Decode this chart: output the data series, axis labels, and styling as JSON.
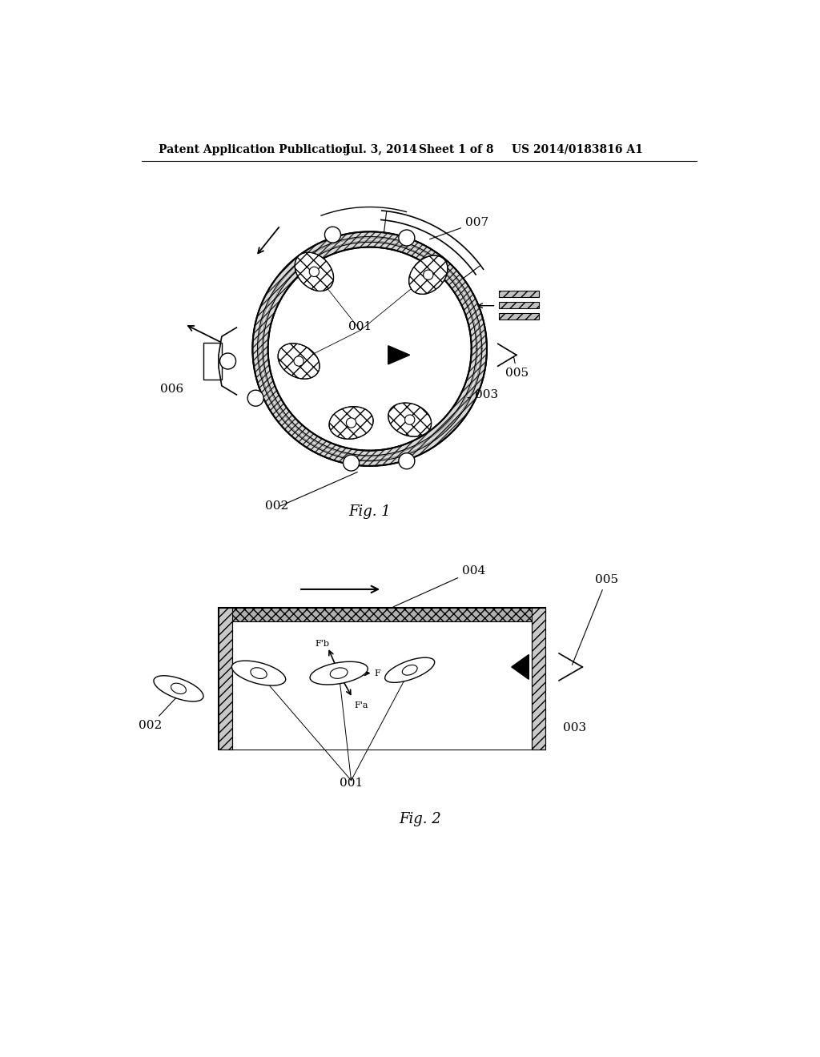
{
  "bg_color": "#ffffff",
  "header_text": "Patent Application Publication",
  "header_date": "Jul. 3, 2014   Sheet 1 of 8",
  "header_patent": "US 2014/0183816 A1",
  "fig1_label": "Fig. 1",
  "fig2_label": "Fig. 2"
}
